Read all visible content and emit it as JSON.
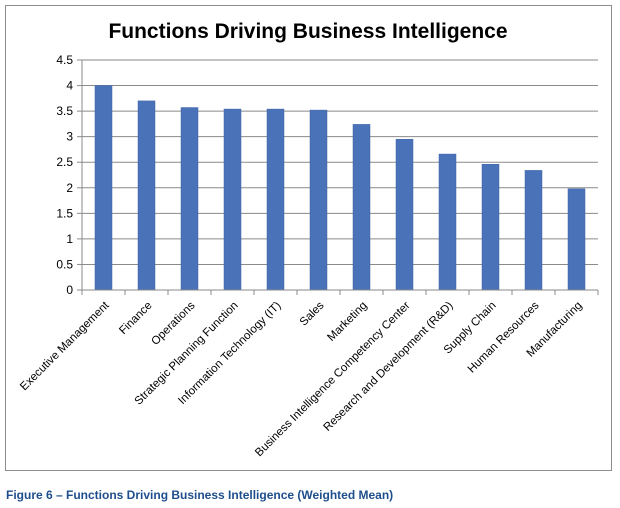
{
  "chart_data": {
    "type": "bar",
    "title": "Functions Driving Business Intelligence",
    "xlabel": "",
    "ylabel": "",
    "ylim": [
      0,
      4.5
    ],
    "yticks": [
      "0",
      "0.5",
      "1",
      "1.5",
      "2",
      "2.5",
      "3",
      "3.5",
      "4",
      "4.5"
    ],
    "grid": true,
    "legend": "none",
    "bar_color": "#4a72b8",
    "categories": [
      "Executive Management",
      "Finance",
      "Operations",
      "Strategic Planning Function",
      "Information Technology (IT)",
      "Sales",
      "Marketing",
      "Business Intelligence Competency Center",
      "Research and Development (R&D)",
      "Supply Chain",
      "Human Resources",
      "Manufacturing"
    ],
    "values": [
      4.0,
      3.7,
      3.57,
      3.54,
      3.54,
      3.52,
      3.24,
      2.95,
      2.66,
      2.46,
      2.34,
      1.98
    ]
  },
  "caption": "Figure 6 – Functions Driving Business Intelligence (Weighted Mean)"
}
